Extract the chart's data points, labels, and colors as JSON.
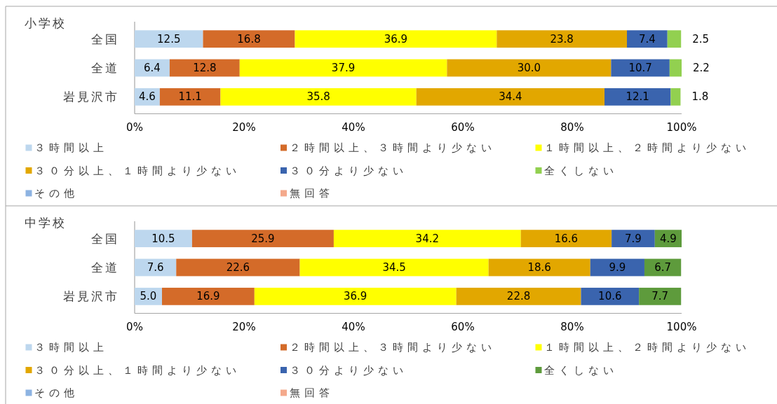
{
  "chart_data": [
    {
      "type": "bar",
      "orientation": "horizontal",
      "stacked": true,
      "title": "小学校",
      "categories": [
        "全国",
        "全道",
        "岩見沢市"
      ],
      "series": [
        {
          "name": "３時間以上",
          "color": "#bdd7ee",
          "values": [
            12.5,
            6.4,
            4.6
          ],
          "value_labels": [
            "12.5",
            "6.4",
            "4.6"
          ]
        },
        {
          "name": "２時間以上、３時間より少ない",
          "color": "#d46b29",
          "values": [
            16.8,
            12.8,
            11.1
          ],
          "value_labels": [
            "16.8",
            "12.8",
            "11.1"
          ]
        },
        {
          "name": "１時間以上、２時間より少ない",
          "color": "#ffff00",
          "values": [
            36.9,
            37.9,
            35.8
          ],
          "value_labels": [
            "36.9",
            "37.9",
            "35.8"
          ]
        },
        {
          "name": "３０分以上、１時間より少ない",
          "color": "#e2a700",
          "values": [
            23.8,
            30.0,
            34.4
          ],
          "value_labels": [
            "23.8",
            "30.0",
            "34.4"
          ]
        },
        {
          "name": "３０分より少ない",
          "color": "#3a64ae",
          "values": [
            7.4,
            10.7,
            12.1
          ],
          "value_labels": [
            "7.4",
            "10.7",
            "12.1"
          ]
        },
        {
          "name": "全くしない",
          "color": "#92d050",
          "values": [
            2.5,
            2.2,
            1.8
          ],
          "value_labels": [
            "2.5",
            "2.2",
            "1.8"
          ]
        },
        {
          "name": "その他",
          "color": "#8db3e2",
          "values": [
            null,
            null,
            null
          ]
        },
        {
          "name": "無回答",
          "color": "#f4a98c",
          "values": [
            null,
            null,
            null
          ]
        }
      ],
      "xlim": [
        0,
        100
      ],
      "xticks": [
        {
          "value": 0,
          "label": "0%"
        },
        {
          "value": 20,
          "label": "20%"
        },
        {
          "value": 40,
          "label": "40%"
        },
        {
          "value": 60,
          "label": "60%"
        },
        {
          "value": 80,
          "label": "80%"
        },
        {
          "value": 100,
          "label": "100%"
        }
      ],
      "legend": "bottom"
    },
    {
      "type": "bar",
      "orientation": "horizontal",
      "stacked": true,
      "title": "中学校",
      "categories": [
        "全国",
        "全道",
        "岩見沢市"
      ],
      "series": [
        {
          "name": "３時間以上",
          "color": "#bdd7ee",
          "values": [
            10.5,
            7.6,
            5.0
          ],
          "value_labels": [
            "10.5",
            "7.6",
            "5.0"
          ]
        },
        {
          "name": "２時間以上、３時間より少ない",
          "color": "#d46b29",
          "values": [
            25.9,
            22.6,
            16.9
          ],
          "value_labels": [
            "25.9",
            "22.6",
            "16.9"
          ]
        },
        {
          "name": "１時間以上、２時間より少ない",
          "color": "#ffff00",
          "values": [
            34.2,
            34.5,
            36.9
          ],
          "value_labels": [
            "34.2",
            "34.5",
            "36.9"
          ]
        },
        {
          "name": "３０分以上、１時間より少ない",
          "color": "#e2a700",
          "values": [
            16.6,
            18.6,
            22.8
          ],
          "value_labels": [
            "16.6",
            "18.6",
            "22.8"
          ]
        },
        {
          "name": "３０分より少ない",
          "color": "#3a64ae",
          "values": [
            7.9,
            9.9,
            10.6
          ],
          "value_labels": [
            "7.9",
            "9.9",
            "10.6"
          ]
        },
        {
          "name": "全くしない",
          "color": "#5e9b3c",
          "values": [
            4.9,
            6.7,
            7.7
          ],
          "value_labels": [
            "4.9",
            "6.7",
            "7.7"
          ]
        },
        {
          "name": "その他",
          "color": "#8db3e2",
          "values": [
            null,
            null,
            null
          ]
        },
        {
          "name": "無回答",
          "color": "#f4a98c",
          "values": [
            null,
            null,
            null
          ]
        }
      ],
      "xlim": [
        0,
        100
      ],
      "xticks": [
        {
          "value": 0,
          "label": "0%"
        },
        {
          "value": 20,
          "label": "20%"
        },
        {
          "value": 40,
          "label": "40%"
        },
        {
          "value": 60,
          "label": "60%"
        },
        {
          "value": 80,
          "label": "80%"
        },
        {
          "value": 100,
          "label": "100%"
        }
      ],
      "legend": "bottom"
    }
  ]
}
